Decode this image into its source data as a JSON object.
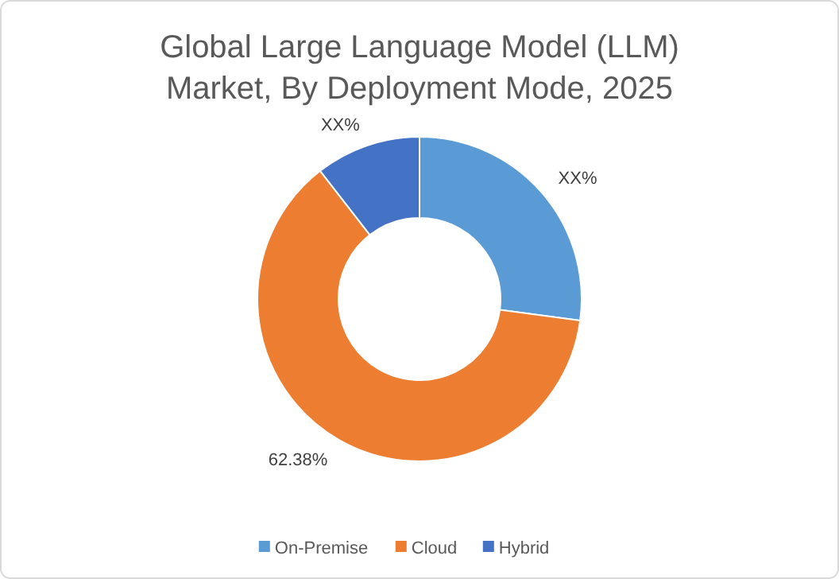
{
  "chart_data": {
    "type": "donut",
    "title": "Global Large Language Model (LLM) Market, By Deployment Mode, 2025",
    "categories": [
      "On-Premise",
      "Cloud",
      "Hybrid"
    ],
    "values": [
      27.12,
      62.38,
      10.5
    ],
    "colors": [
      "#5b9bd5",
      "#ed7d31",
      "#4472c4"
    ],
    "value_labels": [
      "XX%",
      "62.38%",
      "XX%"
    ],
    "legend": "bottom"
  }
}
